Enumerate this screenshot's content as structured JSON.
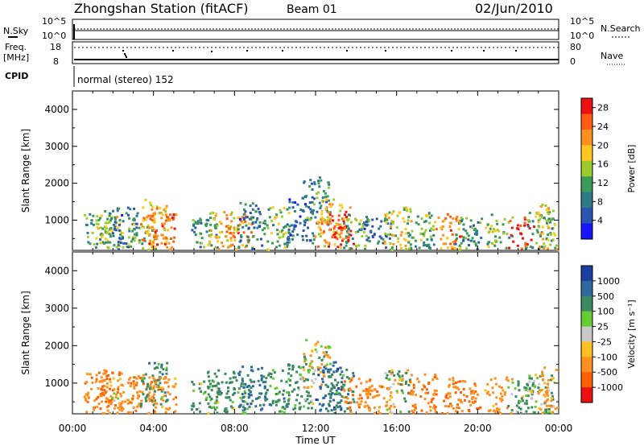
{
  "header": {
    "station": "Zhongshan Station (fitACF)",
    "beam": "Beam 01",
    "date": "02/Jun/2010"
  },
  "top_panel": {
    "left_label_nsky": "N.Sky",
    "left_label_freq": "Freq.",
    "left_label_freq_unit": "[MHz]",
    "left_label_cpid": "CPID",
    "right_label_nsearch": "N.Search",
    "right_label_nave": "Nave",
    "nsky_ticks": [
      "10^5",
      "10^0"
    ],
    "nsearch_ticks": [
      "10^5",
      "10^0"
    ],
    "freq_ticks": [
      "18",
      "8"
    ],
    "nave_ticks": [
      "80",
      "0"
    ],
    "cpid_text": "normal (stereo) 152"
  },
  "chart_data": [
    {
      "type": "heatmap",
      "title": "",
      "xlabel": "Time UT",
      "ylabel": "Slant Range [km]",
      "colorbar_label": "Power [dB]",
      "x_ticks": [
        "00:00",
        "04:00",
        "08:00",
        "12:00",
        "16:00",
        "20:00",
        "00:00"
      ],
      "y_ticks": [
        "1000",
        "2000",
        "3000",
        "4000"
      ],
      "colorbar_ticks": [
        "4",
        "8",
        "12",
        "16",
        "20",
        "24",
        "28"
      ],
      "xlim": [
        0,
        24
      ],
      "ylim": [
        180,
        4500
      ],
      "clim": [
        0,
        30
      ],
      "colors": [
        "#1515ff",
        "#2a55b0",
        "#2f7a8a",
        "#3a9a5a",
        "#9ccc2c",
        "#ffc820",
        "#ff9020",
        "#ff5a10",
        "#ee1010"
      ],
      "patches": [
        {
          "t": 1.2,
          "r": 600,
          "v": 12
        },
        {
          "t": 1.8,
          "r": 500,
          "v": 16
        },
        {
          "t": 2.5,
          "r": 700,
          "v": 8
        },
        {
          "t": 3.4,
          "r": 400,
          "v": 14
        },
        {
          "t": 4.0,
          "r": 900,
          "v": 20
        },
        {
          "t": 4.4,
          "r": 500,
          "v": 24
        },
        {
          "t": 6.5,
          "r": 400,
          "v": 10
        },
        {
          "t": 7.3,
          "r": 600,
          "v": 18
        },
        {
          "t": 8.2,
          "r": 500,
          "v": 22
        },
        {
          "t": 8.8,
          "r": 800,
          "v": 8
        },
        {
          "t": 10.0,
          "r": 700,
          "v": 14
        },
        {
          "t": 11.2,
          "r": 1000,
          "v": 6
        },
        {
          "t": 12.0,
          "r": 1500,
          "v": 10
        },
        {
          "t": 12.6,
          "r": 900,
          "v": 20
        },
        {
          "t": 13.2,
          "r": 700,
          "v": 26
        },
        {
          "t": 14.0,
          "r": 500,
          "v": 12
        },
        {
          "t": 15.0,
          "r": 400,
          "v": 8
        },
        {
          "t": 16.0,
          "r": 700,
          "v": 16
        },
        {
          "t": 17.2,
          "r": 600,
          "v": 12
        },
        {
          "t": 18.5,
          "r": 500,
          "v": 22
        },
        {
          "t": 19.5,
          "r": 400,
          "v": 10
        },
        {
          "t": 21.0,
          "r": 500,
          "v": 14
        },
        {
          "t": 22.1,
          "r": 400,
          "v": 28
        },
        {
          "t": 23.0,
          "r": 600,
          "v": 12
        },
        {
          "t": 23.6,
          "r": 800,
          "v": 18
        }
      ]
    },
    {
      "type": "heatmap",
      "title": "",
      "xlabel": "Time UT",
      "ylabel": "Slant Range [km]",
      "colorbar_label": "Velocity [m s⁻¹]",
      "x_ticks": [
        "00:00",
        "04:00",
        "08:00",
        "12:00",
        "16:00",
        "20:00",
        "00:00"
      ],
      "y_ticks": [
        "1000",
        "2000",
        "3000",
        "4000"
      ],
      "colorbar_ticks": [
        "1000",
        "500",
        "100",
        "25",
        "-25",
        "-100",
        "-500",
        "-1000"
      ],
      "xlim": [
        0,
        24
      ],
      "ylim": [
        180,
        4500
      ],
      "colors": [
        "#1b3fa0",
        "#2e6aa0",
        "#3b8a60",
        "#66cc33",
        "#c8c8c8",
        "#ffc020",
        "#ff9020",
        "#ff6000",
        "#ee1010"
      ],
      "patches": [
        {
          "t": 1.2,
          "r": 600,
          "v": -300
        },
        {
          "t": 1.8,
          "r": 700,
          "v": -500
        },
        {
          "t": 2.5,
          "r": 500,
          "v": -200
        },
        {
          "t": 3.4,
          "r": 600,
          "v": -400
        },
        {
          "t": 4.0,
          "r": 900,
          "v": 300
        },
        {
          "t": 4.4,
          "r": 500,
          "v": -300
        },
        {
          "t": 6.5,
          "r": 400,
          "v": 200
        },
        {
          "t": 7.3,
          "r": 700,
          "v": 300
        },
        {
          "t": 8.2,
          "r": 500,
          "v": 200
        },
        {
          "t": 8.8,
          "r": 800,
          "v": 600
        },
        {
          "t": 10.0,
          "r": 700,
          "v": 300
        },
        {
          "t": 11.2,
          "r": 900,
          "v": 200
        },
        {
          "t": 12.0,
          "r": 1500,
          "v": 0
        },
        {
          "t": 12.6,
          "r": 900,
          "v": 800
        },
        {
          "t": 13.2,
          "r": 700,
          "v": 300
        },
        {
          "t": 14.0,
          "r": 500,
          "v": -400
        },
        {
          "t": 15.0,
          "r": 400,
          "v": -300
        },
        {
          "t": 16.0,
          "r": 700,
          "v": 0
        },
        {
          "t": 17.2,
          "r": 600,
          "v": -500
        },
        {
          "t": 18.5,
          "r": 500,
          "v": -400
        },
        {
          "t": 19.5,
          "r": 400,
          "v": -500
        },
        {
          "t": 21.0,
          "r": 500,
          "v": -300
        },
        {
          "t": 22.1,
          "r": 400,
          "v": 200
        },
        {
          "t": 23.0,
          "r": 600,
          "v": 100
        },
        {
          "t": 23.6,
          "r": 800,
          "v": -200
        }
      ]
    }
  ]
}
